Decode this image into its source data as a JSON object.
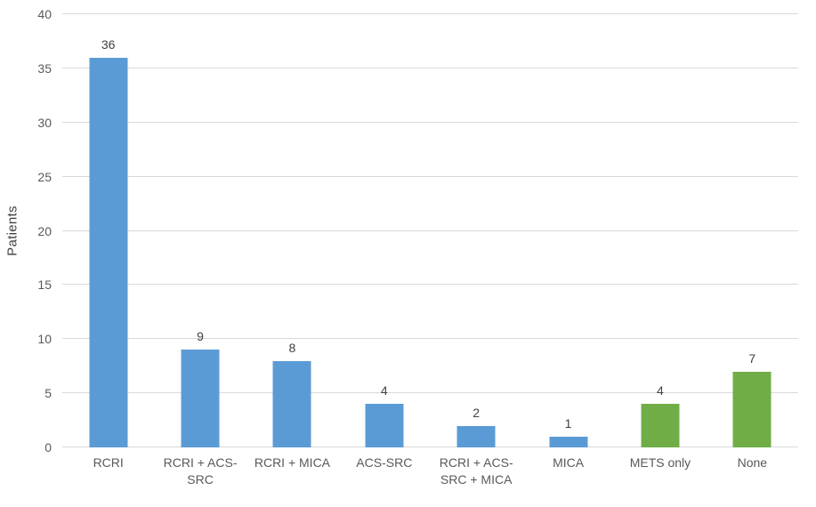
{
  "chart_data": {
    "type": "bar",
    "title": "",
    "xlabel": "",
    "ylabel": "Patients",
    "categories": [
      "RCRI",
      "RCRI + ACS-SRC",
      "RCRI + MICA",
      "ACS-SRC",
      "RCRI + ACS-SRC + MICA",
      "MICA",
      "METS only",
      "None"
    ],
    "values": [
      36,
      9,
      8,
      4,
      2,
      1,
      4,
      7
    ],
    "value_labels": [
      "36",
      "9",
      "8",
      "4",
      "2",
      "1",
      "4",
      "7"
    ],
    "bar_colors": [
      "#5B9BD5",
      "#5B9BD5",
      "#5B9BD5",
      "#5B9BD5",
      "#5B9BD5",
      "#5B9BD5",
      "#70AD47",
      "#70AD47"
    ],
    "ylim": [
      0,
      40
    ],
    "yticks": [
      0,
      5,
      10,
      15,
      20,
      25,
      30,
      35,
      40
    ],
    "grid": true,
    "legend": "none",
    "colors": {
      "series_blue": "#5B9BD5",
      "series_green": "#70AD47",
      "gridline": "#D9D9D9",
      "tick_text": "#595959",
      "data_label_text": "#404040"
    }
  }
}
